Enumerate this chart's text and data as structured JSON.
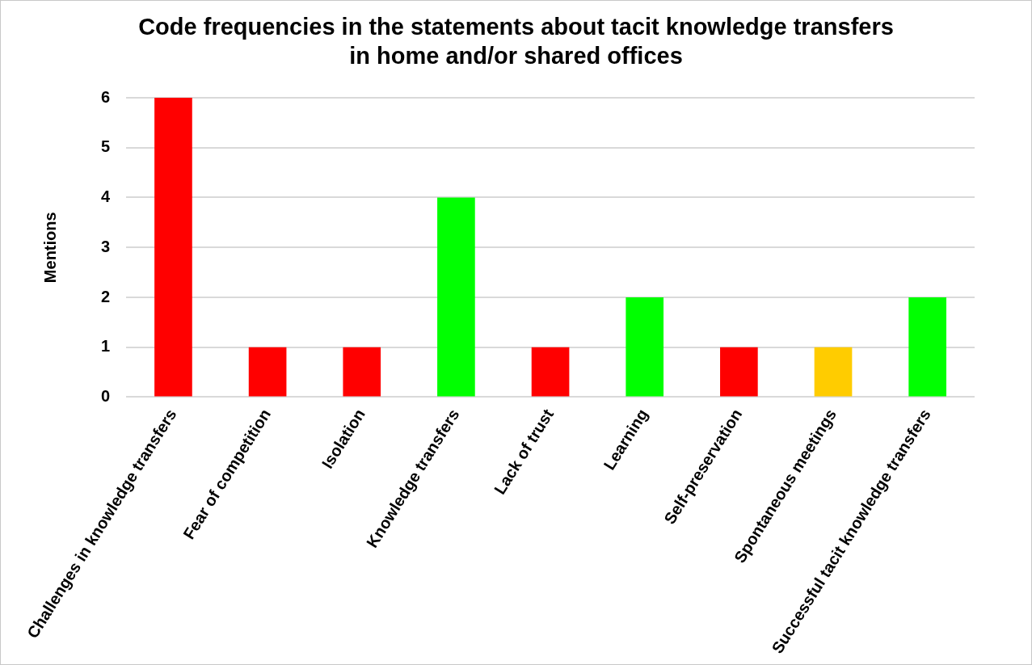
{
  "chart_data": {
    "type": "bar",
    "title": "Code frequencies in the statements about tacit knowledge transfers in home and/or shared offices",
    "ylabel": "Mentions",
    "categories": [
      "Challenges in knowledge transfers",
      "Fear of competition",
      "Isolation",
      "Knowledge transfers",
      "Lack of trust",
      "Learning",
      "Self-preservation",
      "Spontaneous meetings",
      "Successful tacit knowledge transfers"
    ],
    "values": [
      6,
      1,
      1,
      4,
      1,
      2,
      1,
      1,
      2
    ],
    "colors": [
      "#ff0000",
      "#ff0000",
      "#ff0000",
      "#00ff00",
      "#ff0000",
      "#00ff00",
      "#ff0000",
      "#ffcc00",
      "#00ff00"
    ],
    "ylim": [
      0,
      6
    ],
    "yticks": [
      0,
      1,
      2,
      3,
      4,
      5,
      6
    ],
    "grid": "y",
    "legend": false
  }
}
